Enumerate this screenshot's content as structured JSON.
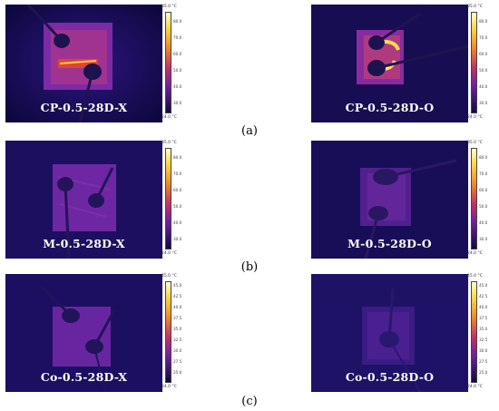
{
  "captions": [
    "(a)",
    "(b)",
    "(c)"
  ],
  "panels": [
    {
      "label": "CP-0.5-28D-X",
      "max": "85.0 °C",
      "min": "24.0 °C",
      "ticks": [
        "80.0",
        "70.0",
        "60.0",
        "50.0",
        "40.0",
        "30.0"
      ],
      "scale": "hot",
      "variant": "cp-x"
    },
    {
      "label": "CP-0.5-28D-O",
      "max": "85.0 °C",
      "min": "24.0 °C",
      "ticks": [
        "80.0",
        "70.0",
        "60.0",
        "50.0",
        "40.0",
        "30.0"
      ],
      "scale": "hot",
      "variant": "cp-o"
    },
    {
      "label": "M-0.5-28D-X",
      "max": "85.0 °C",
      "min": "24.0 °C",
      "ticks": [
        "80.0",
        "70.0",
        "60.0",
        "50.0",
        "40.0",
        "30.0"
      ],
      "scale": "hot",
      "variant": "m-x"
    },
    {
      "label": "M-0.5-28D-O",
      "max": "85.0 °C",
      "min": "24.0 °C",
      "ticks": [
        "80.0",
        "70.0",
        "60.0",
        "50.0",
        "40.0",
        "30.0"
      ],
      "scale": "hot",
      "variant": "m-o"
    },
    {
      "label": "Co-0.5-28D-X",
      "max": "45.0 °C",
      "min": "24.0 °C",
      "ticks": [
        "45.0",
        "42.5",
        "40.0",
        "37.5",
        "35.0",
        "32.5",
        "30.0",
        "27.5",
        "25.0"
      ],
      "scale": "mild",
      "variant": "co-x"
    },
    {
      "label": "Co-0.5-28D-O",
      "max": "45.0 °C",
      "min": "24.0 °C",
      "ticks": [
        "45.0",
        "42.5",
        "40.0",
        "37.5",
        "35.0",
        "32.5",
        "30.0",
        "27.5",
        "25.0"
      ],
      "scale": "mild",
      "variant": "co-o"
    }
  ],
  "colors": {
    "background_cold": "#1a0c5e",
    "plate_warm": "#7a2aa8",
    "hotspot": "#ffd84a",
    "scale_top": "#ffffd0",
    "scale_bottom": "#10093a"
  }
}
